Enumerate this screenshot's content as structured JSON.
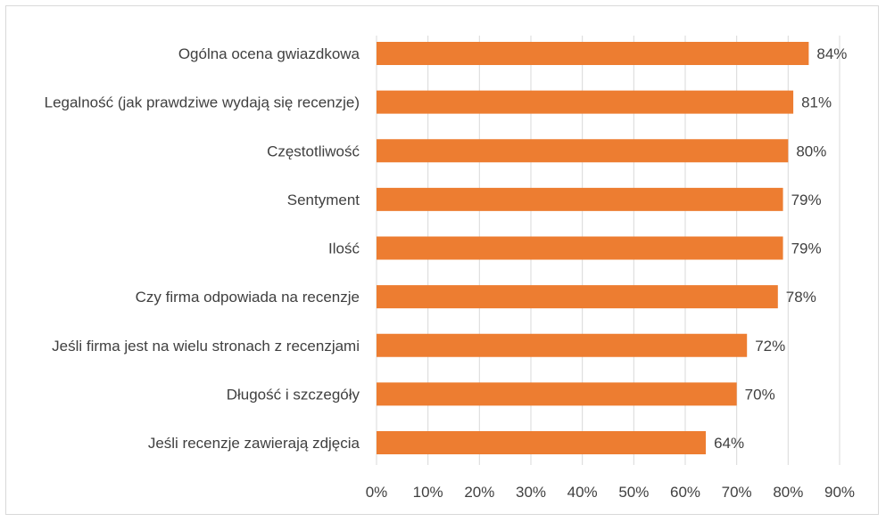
{
  "chart_data": {
    "type": "bar",
    "orientation": "horizontal",
    "title": "",
    "xlabel": "",
    "ylabel": "",
    "categories": [
      "Ogólna ocena gwiazdkowa",
      "Legalność (jak prawdziwe wydają się recenzje)",
      "Częstotliwość",
      "Sentyment",
      "Ilość",
      "Czy firma odpowiada na recenzje",
      "Jeśli firma jest na wielu stronach z recenzjami",
      "Długość i szczegóły",
      "Jeśli recenzje zawierają zdjęcia"
    ],
    "values": [
      84,
      81,
      80,
      79,
      79,
      78,
      72,
      70,
      64
    ],
    "value_labels": [
      "84%",
      "81%",
      "80%",
      "79%",
      "79%",
      "78%",
      "72%",
      "70%",
      "64%"
    ],
    "xlim": [
      0,
      90
    ],
    "ticks": [
      0,
      10,
      20,
      30,
      40,
      50,
      60,
      70,
      80,
      90
    ],
    "tick_labels": [
      "0%",
      "10%",
      "20%",
      "30%",
      "40%",
      "50%",
      "60%",
      "70%",
      "80%",
      "90%"
    ],
    "grid": true,
    "bar_color": "#ed7d31",
    "grid_color": "#d9d9d9",
    "text_color": "#404040"
  }
}
